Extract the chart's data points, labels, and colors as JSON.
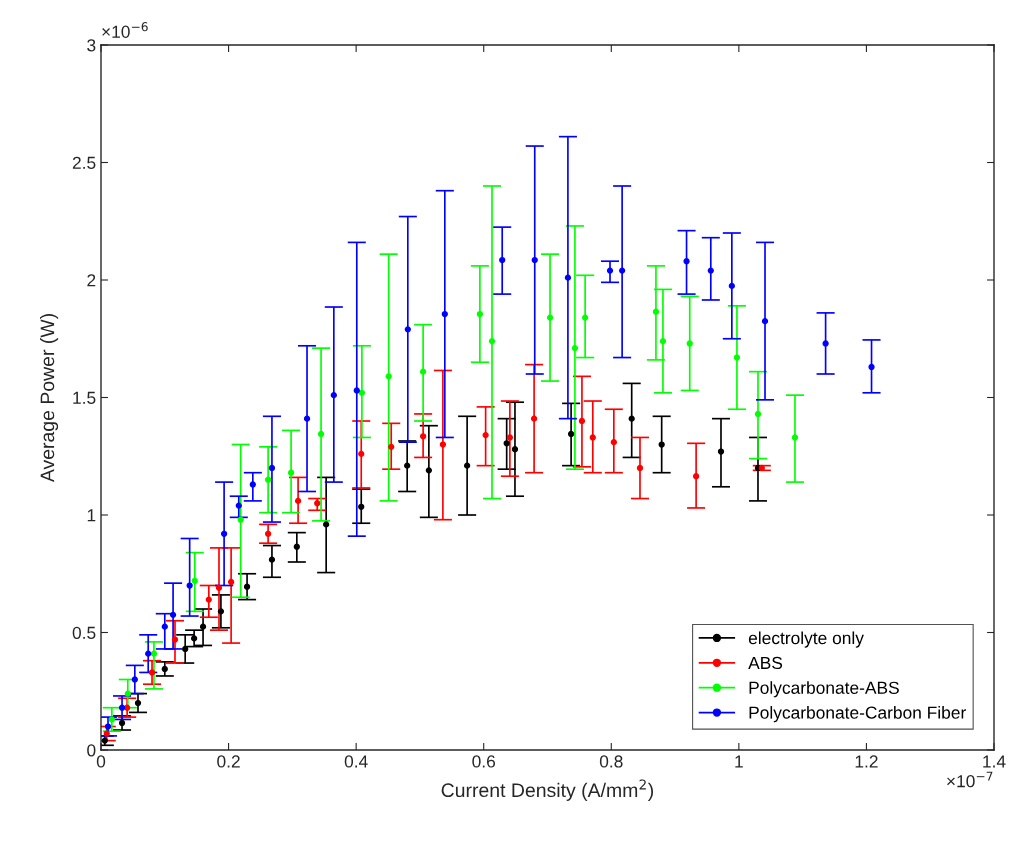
{
  "chart_data": {
    "type": "scatter",
    "xlabel": "Current Density (A/mm$^{2}$)",
    "ylabel": "Average Power (W)",
    "annotations": [
      "×10$^{−6}$",
      "×10$^{−7}$"
    ],
    "xlim": [
      0,
      1.4
    ],
    "xticks": [
      0,
      0.2,
      0.4,
      0.6,
      0.8,
      1,
      1.2,
      1.4
    ],
    "ylim": [
      0,
      3
    ],
    "yticks": [
      0,
      0.5,
      1,
      1.5,
      2,
      2.5,
      3
    ],
    "grid": false,
    "legend": "bottom right",
    "marker": "circle",
    "series": [
      {
        "name": "electrolyte only",
        "color": "#000000",
        "x": [
          0.006,
          0.033,
          0.058,
          0.1,
          0.132,
          0.146,
          0.16,
          0.188,
          0.229,
          0.268,
          0.307,
          0.353,
          0.408,
          0.48,
          0.514,
          0.574,
          0.636,
          0.649,
          0.737,
          0.832,
          0.879,
          0.972,
          1.03
        ],
        "values": [
          0.04,
          0.115,
          0.2,
          0.345,
          0.43,
          0.475,
          0.525,
          0.59,
          0.695,
          0.81,
          0.865,
          0.96,
          1.035,
          1.21,
          1.19,
          1.21,
          1.305,
          1.28,
          1.345,
          1.41,
          1.3,
          1.27,
          1.2
        ],
        "errors": [
          [
            0.02,
            0.06
          ],
          [
            0.085,
            0.145
          ],
          [
            0.16,
            0.24
          ],
          [
            0.315,
            0.375
          ],
          [
            0.37,
            0.49
          ],
          [
            0.44,
            0.51
          ],
          [
            0.445,
            0.6
          ],
          [
            0.52,
            0.66
          ],
          [
            0.64,
            0.75
          ],
          [
            0.735,
            0.87
          ],
          [
            0.8,
            0.925
          ],
          [
            0.755,
            1.16
          ],
          [
            0.965,
            1.11
          ],
          [
            1.1,
            1.315
          ],
          [
            0.99,
            1.38
          ],
          [
            1.0,
            1.42
          ],
          [
            1.195,
            1.41
          ],
          [
            1.08,
            1.48
          ],
          [
            1.21,
            1.475
          ],
          [
            1.245,
            1.56
          ],
          [
            1.18,
            1.42
          ],
          [
            1.12,
            1.41
          ],
          [
            1.06,
            1.33
          ]
        ]
      },
      {
        "name": "ABS",
        "color": "#ff0000",
        "x": [
          0.009,
          0.041,
          0.08,
          0.116,
          0.169,
          0.185,
          0.204,
          0.262,
          0.309,
          0.339,
          0.408,
          0.455,
          0.505,
          0.536,
          0.603,
          0.641,
          0.679,
          0.754,
          0.771,
          0.804,
          0.845,
          0.933,
          1.036
        ],
        "values": [
          0.07,
          0.18,
          0.33,
          0.47,
          0.64,
          0.69,
          0.715,
          0.92,
          1.06,
          1.05,
          1.26,
          1.29,
          1.335,
          1.3,
          1.34,
          1.33,
          1.41,
          1.4,
          1.33,
          1.31,
          1.2,
          1.165,
          1.2
        ],
        "errors": [
          [
            0.04,
            0.1
          ],
          [
            0.14,
            0.22
          ],
          [
            0.28,
            0.38
          ],
          [
            0.37,
            0.55
          ],
          [
            0.565,
            0.7
          ],
          [
            0.51,
            0.86
          ],
          [
            0.455,
            0.86
          ],
          [
            0.88,
            0.96
          ],
          [
            0.965,
            1.16
          ],
          [
            1.02,
            1.07
          ],
          [
            1.115,
            1.4
          ],
          [
            1.195,
            1.39
          ],
          [
            1.245,
            1.43
          ],
          [
            0.98,
            1.615
          ],
          [
            1.21,
            1.46
          ],
          [
            1.165,
            1.485
          ],
          [
            1.18,
            1.64
          ],
          [
            1.205,
            1.59
          ],
          [
            1.18,
            1.485
          ],
          [
            1.18,
            1.45
          ],
          [
            1.07,
            1.33
          ],
          [
            1.03,
            1.305
          ],
          [
            1.19,
            1.21
          ]
        ]
      },
      {
        "name": "Polycarbonate-ABS",
        "color": "#00ff00",
        "x": [
          0.017,
          0.042,
          0.083,
          0.147,
          0.219,
          0.262,
          0.298,
          0.345,
          0.409,
          0.451,
          0.505,
          0.594,
          0.613,
          0.704,
          0.743,
          0.759,
          0.87,
          0.881,
          0.923,
          0.997,
          1.03,
          1.088
        ],
        "values": [
          0.13,
          0.24,
          0.41,
          0.72,
          0.98,
          1.15,
          1.18,
          1.345,
          1.52,
          1.59,
          1.61,
          1.855,
          1.74,
          1.84,
          1.71,
          1.84,
          1.865,
          1.74,
          1.73,
          1.67,
          1.43,
          1.33
        ],
        "errors": [
          [
            0.08,
            0.18
          ],
          [
            0.18,
            0.3
          ],
          [
            0.26,
            0.46
          ],
          [
            0.59,
            0.84
          ],
          [
            0.65,
            1.3
          ],
          [
            1.01,
            1.29
          ],
          [
            1.01,
            1.36
          ],
          [
            0.975,
            1.71
          ],
          [
            1.33,
            1.72
          ],
          [
            1.06,
            2.11
          ],
          [
            1.4,
            1.81
          ],
          [
            1.65,
            2.06
          ],
          [
            1.07,
            2.4
          ],
          [
            1.57,
            2.11
          ],
          [
            1.195,
            2.23
          ],
          [
            1.67,
            2.02
          ],
          [
            1.66,
            2.06
          ],
          [
            1.52,
            1.96
          ],
          [
            1.53,
            1.93
          ],
          [
            1.45,
            1.89
          ],
          [
            1.24,
            1.61
          ],
          [
            1.14,
            1.51
          ]
        ]
      },
      {
        "name": "Polycarbonate-Carbon Fiber",
        "color": "#0000ff",
        "x": [
          0.011,
          0.033,
          0.053,
          0.074,
          0.1,
          0.113,
          0.139,
          0.193,
          0.216,
          0.238,
          0.268,
          0.323,
          0.365,
          0.401,
          0.481,
          0.539,
          0.629,
          0.68,
          0.732,
          0.798,
          0.817,
          0.918,
          0.956,
          0.989,
          1.041,
          1.136,
          1.208
        ],
        "values": [
          0.1,
          0.18,
          0.3,
          0.41,
          0.525,
          0.575,
          0.7,
          0.92,
          1.04,
          1.13,
          1.2,
          1.41,
          1.51,
          1.53,
          1.79,
          1.855,
          2.085,
          2.085,
          2.01,
          2.04,
          2.04,
          2.08,
          2.04,
          1.975,
          1.825,
          1.73,
          1.63
        ],
        "errors": [
          [
            0.06,
            0.14
          ],
          [
            0.13,
            0.23
          ],
          [
            0.24,
            0.36
          ],
          [
            0.33,
            0.49
          ],
          [
            0.43,
            0.58
          ],
          [
            0.43,
            0.71
          ],
          [
            0.57,
            0.9
          ],
          [
            0.7,
            1.14
          ],
          [
            0.99,
            1.08
          ],
          [
            1.06,
            1.18
          ],
          [
            0.97,
            1.42
          ],
          [
            1.1,
            1.72
          ],
          [
            1.14,
            1.885
          ],
          [
            0.91,
            2.16
          ],
          [
            1.31,
            2.27
          ],
          [
            1.33,
            2.38
          ],
          [
            1.94,
            2.225
          ],
          [
            1.6,
            2.57
          ],
          [
            1.41,
            2.61
          ],
          [
            1.99,
            2.08
          ],
          [
            1.67,
            2.4
          ],
          [
            1.94,
            2.21
          ],
          [
            1.915,
            2.18
          ],
          [
            1.75,
            2.2
          ],
          [
            1.49,
            2.16
          ],
          [
            1.6,
            1.86
          ],
          [
            1.52,
            1.745
          ]
        ]
      }
    ]
  }
}
